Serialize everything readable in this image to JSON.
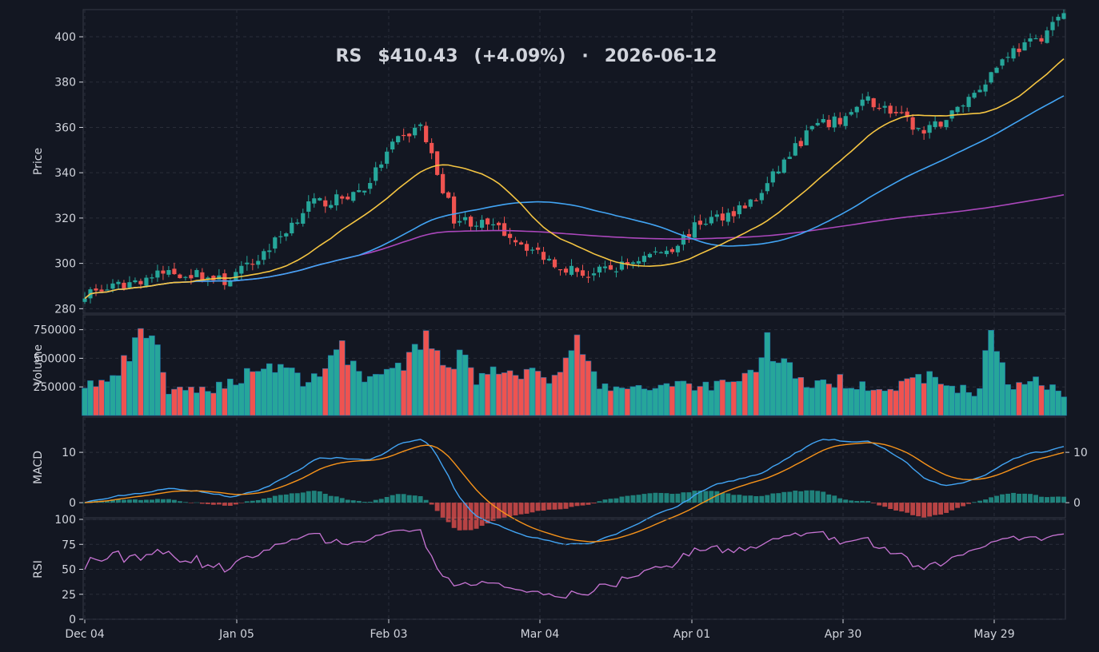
{
  "title": {
    "ticker": "RS",
    "price": "$410.43",
    "change": "(+4.09%)",
    "separator": "·",
    "date": "2026-06-12"
  },
  "colors": {
    "background": "#131722",
    "panel_border": "#363a45",
    "grid": "#2a2e39",
    "text": "#d1d4dc",
    "up": "#26a69a",
    "down": "#ef5350",
    "sma_fast": "#f5c542",
    "sma_mid": "#42a5f5",
    "sma_slow": "#ab47bc",
    "macd_line": "#42a5f5",
    "signal_line": "#f7931a",
    "rsi_line": "#c874d4"
  },
  "chart_data": {
    "type": "candlestick",
    "start_date": "2025-12-04",
    "x_tick_labels": [
      "Dec 04",
      "Jan 05",
      "Feb 03",
      "Mar 04",
      "Apr 01",
      "Apr 30",
      "May 29"
    ],
    "panels": {
      "price": {
        "ylabel": "Price",
        "ylim": [
          278,
          412
        ],
        "yticks": [
          280,
          300,
          320,
          340,
          360,
          380,
          400
        ],
        "series": [
          "SMA fast",
          "SMA mid",
          "SMA slow"
        ]
      },
      "volume": {
        "ylabel": "Volume",
        "ylim": [
          0,
          880000
        ],
        "yticks": [
          250000,
          500000,
          750000
        ]
      },
      "macd": {
        "ylabel": "MACD",
        "ylim_left": [
          -3,
          17
        ],
        "yticks_left": [
          0,
          10
        ],
        "ylim_right": [
          -3,
          17
        ],
        "yticks_right": [
          0,
          10
        ]
      },
      "rsi": {
        "ylabel": "RSI",
        "ylim": [
          0,
          100
        ],
        "yticks": [
          0,
          25,
          50,
          75,
          100
        ]
      }
    },
    "price_anchors": [
      [
        0,
        287
      ],
      [
        5,
        289
      ],
      [
        10,
        293
      ],
      [
        15,
        296
      ],
      [
        20,
        295
      ],
      [
        25,
        292
      ],
      [
        30,
        300
      ],
      [
        35,
        312
      ],
      [
        40,
        326
      ],
      [
        45,
        328
      ],
      [
        50,
        333
      ],
      [
        55,
        352
      ],
      [
        60,
        361
      ],
      [
        63,
        340
      ],
      [
        66,
        320
      ],
      [
        70,
        318
      ],
      [
        75,
        314
      ],
      [
        80,
        306
      ],
      [
        85,
        299
      ],
      [
        90,
        295
      ],
      [
        95,
        298
      ],
      [
        100,
        303
      ],
      [
        105,
        307
      ],
      [
        110,
        318
      ],
      [
        115,
        322
      ],
      [
        120,
        328
      ],
      [
        125,
        345
      ],
      [
        130,
        360
      ],
      [
        135,
        363
      ],
      [
        140,
        372
      ],
      [
        145,
        366
      ],
      [
        150,
        357
      ],
      [
        155,
        366
      ],
      [
        160,
        378
      ],
      [
        165,
        393
      ],
      [
        170,
        398
      ],
      [
        175,
        410
      ]
    ],
    "volume_anchors": [
      [
        0,
        270000
      ],
      [
        5,
        300000
      ],
      [
        8,
        520000
      ],
      [
        12,
        780000
      ],
      [
        15,
        200000
      ],
      [
        20,
        220000
      ],
      [
        25,
        260000
      ],
      [
        30,
        400000
      ],
      [
        35,
        450000
      ],
      [
        40,
        270000
      ],
      [
        45,
        600000
      ],
      [
        50,
        350000
      ],
      [
        55,
        350000
      ],
      [
        60,
        590000
      ],
      [
        62,
        690000
      ],
      [
        65,
        400000
      ],
      [
        68,
        630000
      ],
      [
        70,
        300000
      ],
      [
        75,
        450000
      ],
      [
        80,
        350000
      ],
      [
        85,
        330000
      ],
      [
        88,
        640000
      ],
      [
        92,
        250000
      ],
      [
        100,
        220000
      ],
      [
        105,
        300000
      ],
      [
        110,
        250000
      ],
      [
        115,
        300000
      ],
      [
        120,
        400000
      ],
      [
        122,
        640000
      ],
      [
        125,
        450000
      ],
      [
        130,
        250000
      ],
      [
        135,
        300000
      ],
      [
        140,
        270000
      ],
      [
        145,
        230000
      ],
      [
        150,
        350000
      ],
      [
        155,
        250000
      ],
      [
        160,
        200000
      ],
      [
        162,
        860000
      ],
      [
        165,
        230000
      ],
      [
        170,
        330000
      ],
      [
        175,
        200000
      ]
    ]
  }
}
